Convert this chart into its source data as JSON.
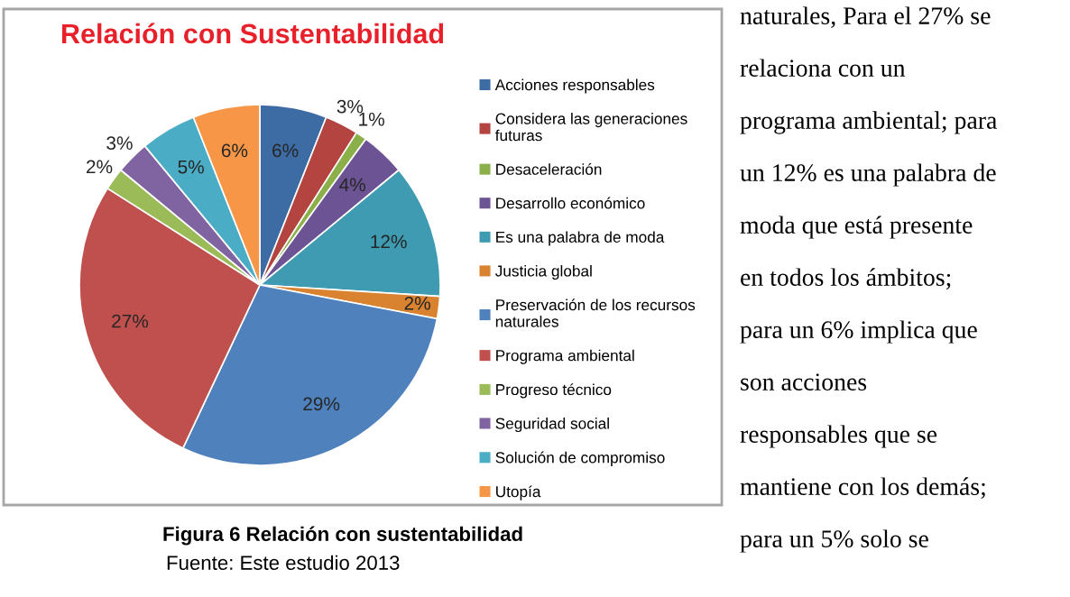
{
  "chart_data": {
    "type": "pie",
    "title": "Relación con Sustentabilidad",
    "categories": [
      "Acciones responsables",
      "Considera las generaciones futuras",
      "Desaceleración",
      "Desarrollo económico",
      "Es una palabra de moda",
      "Justicia global",
      "Preservación de los recursos naturales",
      "Programa ambiental",
      "Progreso técnico",
      "Seguridad social",
      "Solución de compromiso",
      "Utopía"
    ],
    "values": [
      6,
      3,
      1,
      4,
      12,
      2,
      29,
      27,
      2,
      3,
      5,
      6
    ],
    "value_labels": [
      "6%",
      "3%",
      "1%",
      "4%",
      "12%",
      "2%",
      "29%",
      "27%",
      "2%",
      "3%",
      "5%",
      "6%"
    ],
    "colors": [
      "#3d6ba3",
      "#b3443f",
      "#8bb04a",
      "#6b5394",
      "#3e9bb2",
      "#d9822f",
      "#4f81bd",
      "#c0504d",
      "#9bbb59",
      "#8064a2",
      "#4bacc6",
      "#f79646"
    ],
    "legend": "right",
    "annotations": [
      "Figura 6 Relación con sustentabilidad",
      "Fuente: Este estudio 2013",
      "naturales, Para el 27% se",
      "relaciona con un",
      "programa ambiental; para",
      "un 12% es una palabra de",
      "moda que está presente",
      "en todos los ámbitos;",
      "para un 6% implica que",
      "son acciones",
      "responsables que se",
      "mantiene con los demás;",
      "para un 5% solo se"
    ]
  }
}
